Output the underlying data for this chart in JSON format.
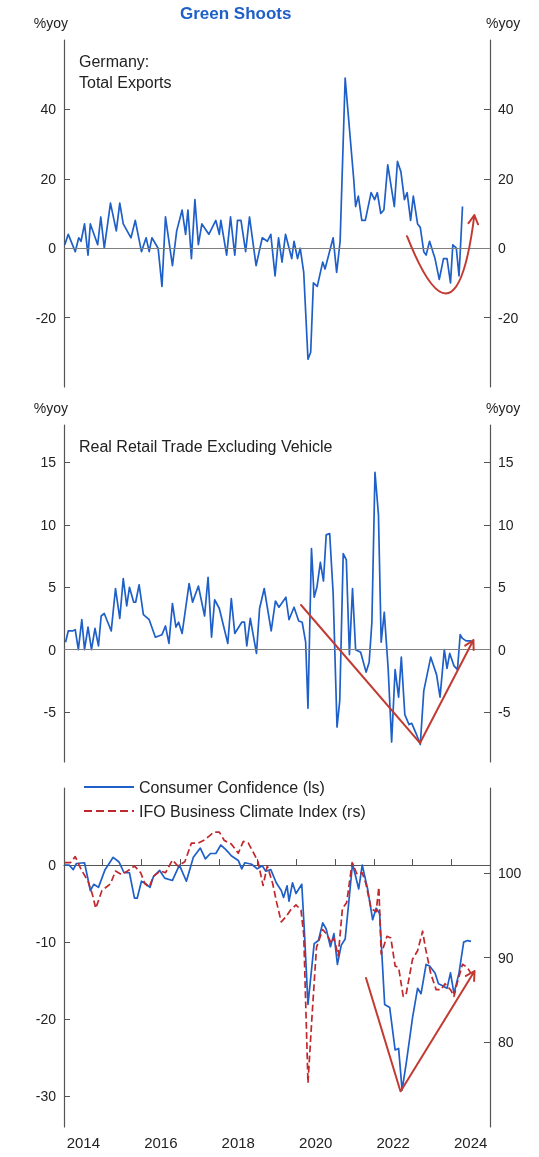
{
  "chart_data": [
    {
      "type": "line",
      "title": "Green Shoots",
      "subtitle": "Germany:\nTotal Exports",
      "ylabel": "%yoy",
      "y2label": "%yoy",
      "xlim": [
        2014,
        2025
      ],
      "ylim": [
        -40,
        60
      ],
      "yticks": [
        -20,
        0,
        20,
        40
      ],
      "y2lim": [
        -40,
        60
      ],
      "y2ticks": [
        -20,
        0,
        20,
        40
      ],
      "tick_labels": "y",
      "ref_lines": [
        {
          "axis": "y",
          "value": 0,
          "color": "#808080"
        }
      ],
      "series": [
        {
          "color": "#1f5fc8",
          "x": [
            2014.02,
            2014.11,
            2014.29,
            2014.38,
            2014.44,
            2014.53,
            2014.62,
            2014.68,
            2014.87,
            2014.95,
            2015.04,
            2015.2,
            2015.35,
            2015.44,
            2015.53,
            2015.73,
            2015.84,
            2016.0,
            2016.12,
            2016.2,
            2016.27,
            2016.43,
            2016.53,
            2016.62,
            2016.8,
            2016.91,
            2017.05,
            2017.14,
            2017.2,
            2017.29,
            2017.38,
            2017.47,
            2017.56,
            2017.74,
            2017.92,
            2018.01,
            2018.05,
            2018.2,
            2018.3,
            2018.41,
            2018.48,
            2018.57,
            2018.69,
            2018.79,
            2018.96,
            2019.12,
            2019.25,
            2019.34,
            2019.45,
            2019.54,
            2019.63,
            2019.72,
            2019.88,
            2019.94,
            2020.03,
            2020.1,
            2020.19,
            2020.3,
            2020.37,
            2020.44,
            2020.54,
            2020.68,
            2020.74,
            2020.95,
            2021.04,
            2021.13,
            2021.26,
            2021.48,
            2021.53,
            2021.6,
            2021.69,
            2021.78,
            2021.93,
            2022.02,
            2022.09,
            2022.18,
            2022.26,
            2022.36,
            2022.53,
            2022.61,
            2022.7,
            2022.79,
            2022.86,
            2022.95,
            2023.02,
            2023.13,
            2023.2,
            2023.29,
            2023.35,
            2023.44,
            2023.58,
            2023.69,
            2023.8,
            2023.89,
            2023.98,
            2024.04,
            2024.13,
            2024.2,
            2024.29
          ],
          "values": [
            1,
            4,
            -1,
            3,
            2,
            7,
            -2,
            7,
            1,
            9,
            0,
            13,
            5,
            13,
            7,
            3,
            8,
            -1,
            3,
            -1,
            3,
            0,
            -11,
            9,
            -5,
            5,
            11,
            4,
            11,
            -3,
            14,
            1,
            7,
            4,
            8,
            4,
            8,
            -2,
            9,
            -2,
            8,
            8,
            -1,
            9,
            -5,
            3,
            2,
            4,
            -8,
            3,
            -4,
            4,
            -3,
            2,
            -3,
            0,
            -7,
            -32,
            -30,
            -10,
            -11,
            -4,
            -6,
            3,
            -7,
            2,
            49,
            20,
            12,
            15,
            8,
            8,
            16,
            14,
            16,
            10,
            11,
            24,
            12,
            25,
            22,
            14,
            16,
            8,
            15,
            7,
            6,
            -1,
            -2,
            2,
            -3,
            -9,
            -3,
            -3,
            -10,
            1,
            0,
            -8,
            12
          ]
        }
      ]
    },
    {
      "type": "line",
      "title": "Real Retail Trade Excluding Vehicle",
      "ylabel": "%yoy",
      "y2label": "%yoy",
      "xlim": [
        2014,
        2025
      ],
      "ylim": [
        -9,
        18
      ],
      "yticks": [
        -5,
        0,
        5,
        10,
        15
      ],
      "y2lim": [
        -9,
        18
      ],
      "y2ticks": [
        -5,
        0,
        5,
        10,
        15
      ],
      "tick_labels": "y",
      "ref_lines": [
        {
          "axis": "y",
          "value": 0,
          "color": "#808080"
        }
      ],
      "series": [
        {
          "color": "#1f5fc8",
          "x": [
            2014.04,
            2014.11,
            2014.22,
            2014.29,
            2014.37,
            2014.46,
            2014.53,
            2014.62,
            2014.71,
            2014.8,
            2014.89,
            2014.96,
            2015.04,
            2015.22,
            2015.33,
            2015.44,
            2015.53,
            2015.62,
            2015.69,
            2015.8,
            2015.85,
            2015.94,
            2016.05,
            2016.2,
            2016.36,
            2016.53,
            2016.62,
            2016.71,
            2016.8,
            2016.89,
            2016.96,
            2017.05,
            2017.23,
            2017.32,
            2017.47,
            2017.63,
            2017.72,
            2017.81,
            2017.89,
            2018.01,
            2018.23,
            2018.32,
            2018.41,
            2018.59,
            2018.66,
            2018.72,
            2018.81,
            2018.97,
            2019.05,
            2019.17,
            2019.35,
            2019.46,
            2019.55,
            2019.73,
            2019.81,
            2019.94,
            2020.06,
            2020.15,
            2020.24,
            2020.3,
            2020.39,
            2020.46,
            2020.53,
            2020.62,
            2020.7,
            2020.77,
            2020.86,
            2020.95,
            2021.05,
            2021.12,
            2021.21,
            2021.29,
            2021.37,
            2021.45,
            2021.53,
            2021.66,
            2021.8,
            2021.88,
            2021.95,
            2022.03,
            2022.12,
            2022.19,
            2022.27,
            2022.37,
            2022.46,
            2022.55,
            2022.64,
            2022.71,
            2022.8,
            2022.91,
            2022.98,
            2023.09,
            2023.2,
            2023.29,
            2023.47,
            2023.62,
            2023.71,
            2023.82,
            2023.89,
            2023.96,
            2024.07,
            2024.16,
            2024.23,
            2024.29,
            2024.38,
            2024.51
          ],
          "values": [
            0.6,
            1.5,
            1.5,
            1.6,
            0,
            2.4,
            0,
            1.8,
            0,
            1.7,
            0.3,
            2.7,
            2.9,
            1.5,
            4.9,
            2.5,
            5.7,
            3.5,
            5,
            3.8,
            3.8,
            5.2,
            2.8,
            2.4,
            1,
            1.2,
            1.9,
            0.5,
            3.7,
            1.8,
            2.2,
            1.3,
            5.3,
            3.8,
            5.1,
            2.7,
            5.8,
            1,
            4,
            3.3,
            0.5,
            4.1,
            1.3,
            2.2,
            2.2,
            0.3,
            2.5,
            -0.3,
            3.3,
            4.9,
            1.5,
            3.9,
            3.4,
            4.2,
            2.4,
            3.4,
            2.3,
            2.2,
            0.6,
            -4.7,
            8.1,
            4.2,
            5,
            7,
            5.5,
            9.2,
            9.3,
            4.5,
            -6.2,
            -4.1,
            7.7,
            7.2,
            -0.4,
            4.9,
            0,
            -0.2,
            -1.8,
            -1,
            2.2,
            14.2,
            10.8,
            0.6,
            3,
            -1.5,
            -7.4,
            -1.6,
            -3.8,
            -0.6,
            -5.2,
            -6,
            -5.9,
            -6.7,
            -7.6,
            -3.3,
            -0.6,
            -2,
            -3.8,
            0,
            -1.5,
            -0.3,
            -1.3,
            -1.6,
            1.2,
            0.9,
            0.7,
            0.7
          ]
        }
      ]
    },
    {
      "type": "line",
      "xlim": [
        2014,
        2025
      ],
      "xticks": [
        {
          "value": 2014.5,
          "label": "2014"
        },
        {
          "value": 2015,
          "label": null
        },
        {
          "value": 2016,
          "label": null
        },
        {
          "value": 2016.5,
          "label": "2016"
        },
        {
          "value": 2017,
          "label": null
        },
        {
          "value": 2018,
          "label": null
        },
        {
          "value": 2018.5,
          "label": "2018"
        },
        {
          "value": 2019,
          "label": null
        },
        {
          "value": 2020,
          "label": null
        },
        {
          "value": 2020.5,
          "label": "2020"
        },
        {
          "value": 2021,
          "label": null
        },
        {
          "value": 2022,
          "label": null
        },
        {
          "value": 2022.5,
          "label": "2022"
        },
        {
          "value": 2023,
          "label": null
        },
        {
          "value": 2024,
          "label": null
        },
        {
          "value": 2024.5,
          "label": "2024"
        }
      ],
      "ylim": [
        -34,
        10
      ],
      "yticks": [
        -30,
        -20,
        -10,
        0
      ],
      "y2lim": [
        70,
        110
      ],
      "y2ticks": [
        80,
        90,
        100
      ],
      "legend": "top left",
      "series": [
        {
          "name": "Consumer Confidence (ls)",
          "color": "#1f5fc8",
          "line_style": "solid",
          "x": [
            2014.02,
            2014.13,
            2014.24,
            2014.32,
            2014.53,
            2014.68,
            2014.77,
            2014.89,
            2015.06,
            2015.27,
            2015.42,
            2015.55,
            2015.69,
            2015.82,
            2015.89,
            2016.0,
            2016.13,
            2016.22,
            2016.31,
            2016.47,
            2016.6,
            2016.8,
            2016.98,
            2017.16,
            2017.34,
            2017.52,
            2017.65,
            2017.78,
            2017.92,
            2018.05,
            2018.18,
            2018.32,
            2018.5,
            2018.59,
            2018.67,
            2018.85,
            2018.99,
            2019.12,
            2019.21,
            2019.34,
            2019.48,
            2019.61,
            2019.67,
            2019.76,
            2019.81,
            2019.9,
            2019.99,
            2020.14,
            2020.21,
            2020.3,
            2020.46,
            2020.57,
            2020.68,
            2020.77,
            2020.88,
            2020.97,
            2021.06,
            2021.16,
            2021.26,
            2021.35,
            2021.45,
            2021.61,
            2021.7,
            2021.84,
            2021.97,
            2022.06,
            2022.15,
            2022.28,
            2022.41,
            2022.55,
            2022.64,
            2022.73,
            2022.84,
            2023.0,
            2023.13,
            2023.22,
            2023.35,
            2023.44,
            2023.58,
            2023.67,
            2023.75,
            2023.89,
            2023.98,
            2024.07,
            2024.2,
            2024.32,
            2024.42,
            2024.51
          ],
          "values": [
            0,
            0,
            -0.6,
            0.2,
            0.3,
            -3.3,
            -2.5,
            -2.9,
            -0.6,
            1,
            0.4,
            -1,
            -1,
            -4.3,
            -4.3,
            -2.1,
            -2.5,
            -2.9,
            -1.5,
            -0.7,
            -1.7,
            -2,
            0,
            -2.1,
            1,
            2.2,
            0.8,
            1.5,
            1.5,
            2.6,
            2,
            1.2,
            0.6,
            -0.5,
            0.3,
            0.1,
            -0.5,
            -0.1,
            -0.8,
            -0.6,
            -2.3,
            -3.3,
            -4.2,
            -2.7,
            -4.7,
            -2.3,
            -3.7,
            -2.5,
            -8.9,
            -18.1,
            -10.2,
            -9.8,
            -7.5,
            -8.3,
            -10.6,
            -8.9,
            -12.9,
            -10.4,
            -9.6,
            -5,
            0.2,
            -3.1,
            0,
            -3.1,
            -7.1,
            -5.6,
            -6.3,
            -18.1,
            -18.5,
            -24,
            -23.8,
            -29.2,
            -25.6,
            -19.8,
            -16,
            -16.7,
            -12.9,
            -13.1,
            -14,
            -15.4,
            -15.6,
            -16,
            -14,
            -16.7,
            -14,
            -10,
            -9.8,
            -9.9
          ]
        },
        {
          "name": "IFO Business Climate Index (rs)",
          "color": "#c0282d",
          "line_style": "dashed",
          "axis": "y2",
          "x": [
            2014.02,
            2014.17,
            2014.29,
            2014.44,
            2014.62,
            2014.73,
            2014.82,
            2014.98,
            2015.2,
            2015.33,
            2015.48,
            2015.64,
            2015.82,
            2015.98,
            2016.09,
            2016.2,
            2016.31,
            2016.49,
            2016.62,
            2016.8,
            2016.94,
            2017.12,
            2017.29,
            2017.47,
            2017.6,
            2017.74,
            2017.87,
            2018.01,
            2018.14,
            2018.32,
            2018.5,
            2018.63,
            2018.76,
            2018.9,
            2019.01,
            2019.14,
            2019.25,
            2019.39,
            2019.49,
            2019.61,
            2019.73,
            2019.85,
            2019.99,
            2020.12,
            2020.19,
            2020.3,
            2020.41,
            2020.52,
            2020.68,
            2020.79,
            2020.9,
            2020.97,
            2021.08,
            2021.19,
            2021.3,
            2021.44,
            2021.57,
            2021.7,
            2021.79,
            2021.93,
            2022.06,
            2022.13,
            2022.19,
            2022.34,
            2022.44,
            2022.55,
            2022.64,
            2022.76,
            2022.84,
            2023.0,
            2023.13,
            2023.26,
            2023.33,
            2023.47,
            2023.61,
            2023.73,
            2023.84,
            2023.98,
            2024.07,
            2024.16,
            2024.29,
            2024.42,
            2024.51
          ],
          "values": [
            101.2,
            101.2,
            101.9,
            100.4,
            99,
            97.5,
            95.8,
            97.9,
            98.7,
            100.2,
            99.8,
            100.2,
            100.8,
            100,
            98.7,
            98.3,
            99.6,
            100.2,
            100,
            101.5,
            100.8,
            101.3,
            103.5,
            103.5,
            103.8,
            104.3,
            104.8,
            104.8,
            103.8,
            103.4,
            102.3,
            103.7,
            103.5,
            102.3,
            101.3,
            98.5,
            100.8,
            98.7,
            96.5,
            94.2,
            94.8,
            95.6,
            96.2,
            95.6,
            92.7,
            75.2,
            83.5,
            91.2,
            93.3,
            92.7,
            91.7,
            92.3,
            90.2,
            95.8,
            96.5,
            101.2,
            99.8,
            100,
            98.8,
            95.8,
            95.4,
            98.3,
            90.4,
            92.5,
            92.3,
            89,
            88.8,
            85.4,
            85.8,
            89.8,
            90.8,
            93.1,
            91.2,
            88.1,
            86.2,
            86.2,
            86.9,
            86.2,
            85.4,
            87.1,
            89.2,
            88.8,
            88.1
          ]
        }
      ]
    }
  ]
}
